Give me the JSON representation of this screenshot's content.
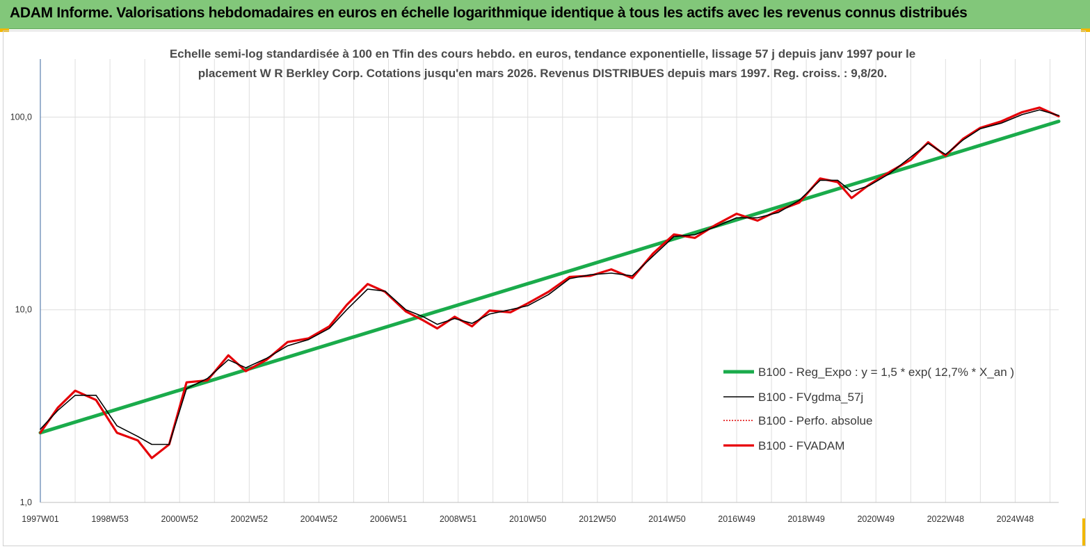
{
  "header": {
    "title": "ADAM Informe. Valorisations hebdomadaires en euros en échelle logarithmique identique à tous les actifs avec les revenus connus distribués"
  },
  "colors": {
    "header_bg": "#82c77a",
    "corner_marks": "#f2b800",
    "regression": "#1aab4b",
    "smoothed": "#000000",
    "perfo": "#e00000",
    "fvadam": "#e8000b"
  },
  "chart_data": {
    "type": "line",
    "title_lines": [
      "Echelle semi-log standardisée à 100 en Tfin des cours hebdo. en euros, tendance exponentielle, lissage 57 j depuis janv 1997 pour le",
      "placement W R Berkley Corp. Cotations jusqu'en mars 2026. Revenus DISTRIBUES depuis mars 1997. Reg. croiss. : 9,8/20."
    ],
    "y_scale": "log",
    "ylim": [
      1,
      200
    ],
    "xlim": [
      1997.0,
      2026.25
    ],
    "y_ticks": [
      {
        "value": 1,
        "label": "1,0"
      },
      {
        "value": 10,
        "label": "10,0"
      },
      {
        "value": 100,
        "label": "100,0"
      }
    ],
    "x_ticks": [
      {
        "value": 1997.0,
        "label": "1997W01"
      },
      {
        "value": 1999.0,
        "label": "1998W53"
      },
      {
        "value": 2001.0,
        "label": "2000W52"
      },
      {
        "value": 2003.0,
        "label": "2002W52"
      },
      {
        "value": 2005.0,
        "label": "2004W52"
      },
      {
        "value": 2007.0,
        "label": "2006W51"
      },
      {
        "value": 2009.0,
        "label": "2008W51"
      },
      {
        "value": 2011.0,
        "label": "2010W50"
      },
      {
        "value": 2013.0,
        "label": "2012W50"
      },
      {
        "value": 2015.0,
        "label": "2014W50"
      },
      {
        "value": 2017.0,
        "label": "2016W49"
      },
      {
        "value": 2019.0,
        "label": "2018W49"
      },
      {
        "value": 2021.0,
        "label": "2020W49"
      },
      {
        "value": 2023.0,
        "label": "2022W48"
      },
      {
        "value": 2025.0,
        "label": "2024W48"
      }
    ],
    "grid": "vertical",
    "legend_position": "bottom-right",
    "series": [
      {
        "name": "B100 - Reg_Expo : y = 1,5 * exp( 12,7% *  X_an )",
        "style": "solid-thick",
        "x": [
          1997.0,
          2026.25
        ],
        "y": [
          2.3,
          95
        ]
      },
      {
        "name": "B100 - FVgdma_57j",
        "style": "solid-thin",
        "x": [
          1997.0,
          1997.5,
          1998.0,
          1998.6,
          1999.2,
          1999.8,
          2000.2,
          2000.7,
          2001.2,
          2001.8,
          2002.4,
          2002.9,
          2003.5,
          2004.1,
          2004.7,
          2005.3,
          2005.8,
          2006.4,
          2006.9,
          2007.5,
          2008.0,
          2008.4,
          2008.9,
          2009.4,
          2009.9,
          2010.5,
          2011.0,
          2011.6,
          2012.2,
          2012.8,
          2013.4,
          2014.0,
          2014.6,
          2015.2,
          2015.8,
          2016.4,
          2017.0,
          2017.6,
          2018.2,
          2018.8,
          2019.4,
          2019.9,
          2020.3,
          2020.8,
          2021.4,
          2022.0,
          2022.5,
          2023.0,
          2023.5,
          2024.0,
          2024.6,
          2025.2,
          2025.7,
          2026.25
        ],
        "y": [
          2.4,
          3.0,
          3.6,
          3.6,
          2.5,
          2.2,
          2.0,
          2.0,
          3.9,
          4.4,
          5.5,
          5.0,
          5.6,
          6.5,
          7.0,
          8.0,
          10.0,
          12.8,
          12.5,
          10.0,
          9.2,
          8.4,
          9.0,
          8.5,
          9.5,
          10.0,
          10.5,
          12.0,
          14.5,
          15.2,
          15.5,
          15.0,
          19.0,
          24.0,
          24.5,
          27.0,
          30.0,
          30.0,
          32.0,
          37.0,
          47.0,
          47.0,
          41.0,
          44.0,
          51.0,
          62.0,
          73.0,
          64.0,
          76.0,
          87.0,
          93.0,
          103.0,
          109.0,
          102.0
        ]
      },
      {
        "name": "B100 - Perfo. absolue",
        "style": "dotted",
        "x": [
          1997.0,
          1997.5,
          1998.0,
          1998.6,
          1999.2,
          1999.8,
          2000.2,
          2000.7,
          2001.2,
          2001.8,
          2002.4,
          2002.9,
          2003.5,
          2004.1,
          2004.7,
          2005.3,
          2005.8,
          2006.4,
          2006.9,
          2007.5,
          2008.0,
          2008.4,
          2008.9,
          2009.4,
          2009.9,
          2010.5,
          2011.0,
          2011.6,
          2012.2,
          2012.8,
          2013.4,
          2014.0,
          2014.6,
          2015.2,
          2015.8,
          2016.4,
          2017.0,
          2017.6,
          2018.2,
          2018.8,
          2019.4,
          2019.9,
          2020.3,
          2020.8,
          2021.4,
          2022.0,
          2022.5,
          2023.0,
          2023.5,
          2024.0,
          2024.6,
          2025.2,
          2025.7,
          2026.25
        ],
        "y": [
          2.3,
          3.1,
          3.8,
          3.4,
          2.3,
          2.1,
          1.7,
          2.0,
          4.2,
          4.3,
          5.8,
          4.8,
          5.5,
          6.8,
          7.1,
          8.2,
          10.6,
          13.6,
          12.4,
          9.8,
          8.8,
          8.0,
          9.2,
          8.2,
          9.9,
          9.7,
          10.8,
          12.4,
          14.8,
          15.0,
          16.2,
          14.6,
          19.6,
          24.6,
          23.6,
          27.6,
          31.5,
          29.0,
          32.8,
          36.0,
          48.0,
          46.0,
          38.0,
          44.5,
          52.0,
          60.0,
          74.0,
          63.0,
          77.0,
          88.0,
          95.0,
          106.0,
          112.0,
          101.0
        ]
      },
      {
        "name": "B100 - FVADAM",
        "style": "solid-thick",
        "x": [
          1997.0,
          1997.5,
          1998.0,
          1998.6,
          1999.2,
          1999.8,
          2000.2,
          2000.7,
          2001.2,
          2001.8,
          2002.4,
          2002.9,
          2003.5,
          2004.1,
          2004.7,
          2005.3,
          2005.8,
          2006.4,
          2006.9,
          2007.5,
          2008.0,
          2008.4,
          2008.9,
          2009.4,
          2009.9,
          2010.5,
          2011.0,
          2011.6,
          2012.2,
          2012.8,
          2013.4,
          2014.0,
          2014.6,
          2015.2,
          2015.8,
          2016.4,
          2017.0,
          2017.6,
          2018.2,
          2018.8,
          2019.4,
          2019.9,
          2020.3,
          2020.8,
          2021.4,
          2022.0,
          2022.5,
          2023.0,
          2023.5,
          2024.0,
          2024.6,
          2025.2,
          2025.7,
          2026.25
        ],
        "y": [
          2.3,
          3.1,
          3.8,
          3.4,
          2.3,
          2.1,
          1.7,
          2.0,
          4.2,
          4.3,
          5.8,
          4.8,
          5.5,
          6.8,
          7.1,
          8.2,
          10.6,
          13.6,
          12.4,
          9.8,
          8.8,
          8.0,
          9.2,
          8.2,
          9.9,
          9.7,
          10.8,
          12.4,
          14.8,
          15.0,
          16.2,
          14.6,
          19.6,
          24.6,
          23.6,
          27.6,
          31.5,
          29.0,
          32.8,
          36.0,
          48.0,
          46.0,
          38.0,
          44.5,
          52.0,
          60.0,
          74.0,
          63.0,
          77.0,
          88.0,
          95.0,
          106.0,
          112.0,
          101.0
        ]
      }
    ]
  }
}
